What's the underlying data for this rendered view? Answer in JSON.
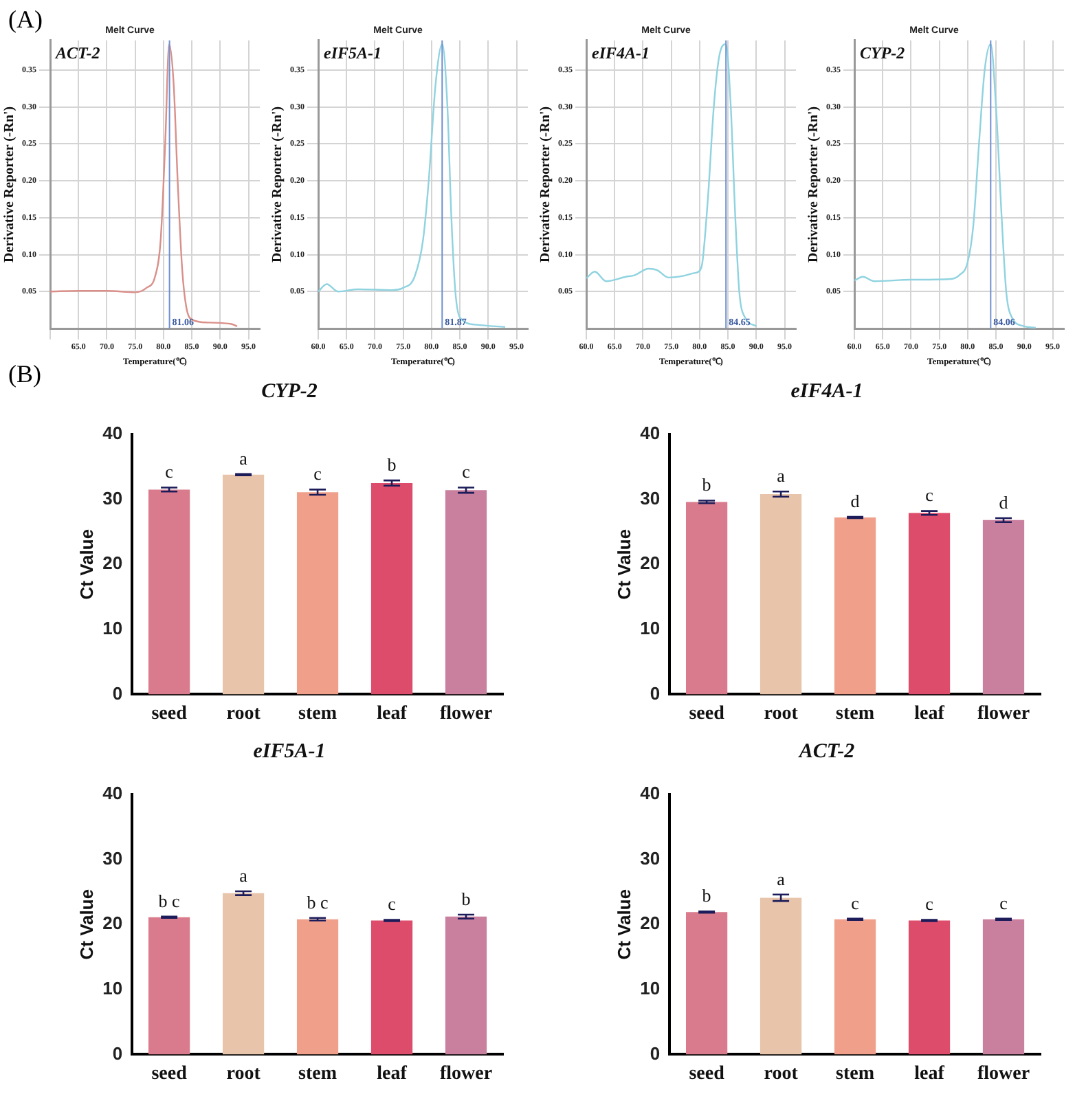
{
  "chart_data": [
    {
      "type": "other",
      "title": "(A)"
    },
    {
      "type": "line",
      "title": "Melt Curve",
      "xlabel": "Temperature(℃)",
      "ylabel": "Derivative Reporter (-Rn')",
      "annotations": [
        "ACT-2"
      ],
      "color": "#d9908a",
      "x": [
        60,
        65,
        70,
        75,
        77,
        78.5,
        79.5,
        80.3,
        81,
        81.8,
        82.5,
        83.3,
        84,
        85,
        88,
        92,
        93
      ],
      "values": [
        0.05,
        0.051,
        0.051,
        0.049,
        0.055,
        0.07,
        0.12,
        0.25,
        0.385,
        0.33,
        0.2,
        0.08,
        0.03,
        0.012,
        0.008,
        0.006,
        0.003
      ],
      "xlim": [
        60,
        97
      ],
      "xticks": [
        {
          "value": 60,
          "label": null
        },
        {
          "value": 65,
          "label": "65.0"
        },
        {
          "value": 70,
          "label": "70.0"
        },
        {
          "value": 75,
          "label": "75.0"
        },
        {
          "value": 80,
          "label": "80.0"
        },
        {
          "value": 85,
          "label": "85.0"
        },
        {
          "value": 90,
          "label": "90.0"
        },
        {
          "value": 95,
          "label": "95.0"
        }
      ],
      "ylim": [
        0,
        0.39
      ],
      "yticks": [
        0.05,
        {
          "value": 0.1,
          "label": "0.10"
        },
        0.15,
        {
          "value": 0.2,
          "label": "0.20"
        },
        0.25,
        {
          "value": 0.3,
          "label": "0.30"
        },
        0.35
      ],
      "grid": true,
      "ref_lines": [
        {
          "axis": "x",
          "value": 81.06,
          "label": "81.06",
          "color": "#6f8fd0"
        }
      ]
    },
    {
      "type": "line",
      "title": "Melt Curve",
      "xlabel": "Temperature(℃)",
      "ylabel": "Derivative Reporter (-Rn')",
      "annotations": [
        "eIF5A-1"
      ],
      "color": "#8fd3e0",
      "x": [
        60,
        61.5,
        63.5,
        67,
        73,
        75,
        77,
        78.5,
        79.5,
        80.7,
        81.9,
        82.8,
        83.5,
        84.2,
        85,
        88,
        93
      ],
      "values": [
        0.05,
        0.06,
        0.05,
        0.053,
        0.052,
        0.055,
        0.07,
        0.12,
        0.2,
        0.33,
        0.385,
        0.3,
        0.15,
        0.05,
        0.015,
        0.005,
        0.002
      ],
      "xlim": [
        60,
        97
      ],
      "xticks": [
        {
          "value": 60,
          "label": "60.0"
        },
        {
          "value": 65,
          "label": "65.0"
        },
        {
          "value": 70,
          "label": "70.0"
        },
        {
          "value": 75,
          "label": "75.0"
        },
        {
          "value": 80,
          "label": "80.0"
        },
        {
          "value": 85,
          "label": "85.0"
        },
        {
          "value": 90,
          "label": "90.0"
        },
        {
          "value": 95,
          "label": "95.0"
        }
      ],
      "ylim": [
        0,
        0.39
      ],
      "yticks": [
        0.05,
        {
          "value": 0.1,
          "label": "0.10"
        },
        0.15,
        {
          "value": 0.2,
          "label": "0.20"
        },
        0.25,
        {
          "value": 0.3,
          "label": "0.30"
        },
        0.35
      ],
      "grid": true,
      "ref_lines": [
        {
          "axis": "x",
          "value": 81.87,
          "label": "81.87",
          "color": "#6f8fd0"
        }
      ]
    },
    {
      "type": "line",
      "title": "Melt Curve",
      "xlabel": "Temperature(℃)",
      "ylabel": "Derivative Reporter (-Rn')",
      "annotations": [
        "eIF4A-1"
      ],
      "color": "#8fd3e0",
      "x": [
        60,
        61.5,
        63.5,
        67,
        68.5,
        71,
        72.5,
        74.5,
        77,
        79,
        80,
        80.5,
        81.5,
        82.5,
        83.5,
        84.65,
        85.5,
        86.3,
        87,
        88,
        90
      ],
      "values": [
        0.068,
        0.077,
        0.064,
        0.07,
        0.072,
        0.081,
        0.079,
        0.069,
        0.071,
        0.075,
        0.078,
        0.09,
        0.18,
        0.3,
        0.37,
        0.385,
        0.3,
        0.15,
        0.05,
        0.015,
        0.003
      ],
      "xlim": [
        60,
        97
      ],
      "xticks": [
        {
          "value": 60,
          "label": "60.0"
        },
        {
          "value": 65,
          "label": "65.0"
        },
        {
          "value": 70,
          "label": "70.0"
        },
        {
          "value": 75,
          "label": "75.0"
        },
        {
          "value": 80,
          "label": "80.0"
        },
        {
          "value": 85,
          "label": "85.0"
        },
        {
          "value": 90,
          "label": "90.0"
        },
        {
          "value": 95,
          "label": "95.0"
        }
      ],
      "ylim": [
        0,
        0.39
      ],
      "yticks": [
        0.05,
        {
          "value": 0.1,
          "label": "0.10"
        },
        0.15,
        {
          "value": 0.2,
          "label": "0.20"
        },
        0.25,
        {
          "value": 0.3,
          "label": "0.30"
        },
        0.35
      ],
      "grid": true,
      "ref_lines": [
        {
          "axis": "x",
          "value": 84.65,
          "label": "84.65",
          "color": "#6f8fd0"
        }
      ]
    },
    {
      "type": "line",
      "title": "Melt Curve",
      "xlabel": "Temperature(℃)",
      "ylabel": "Derivative Reporter (-Rn')",
      "annotations": [
        "CYP-2"
      ],
      "color": "#8fd3e0",
      "x": [
        60,
        61.5,
        63.5,
        70,
        77,
        78.5,
        80,
        81,
        82,
        83,
        84.06,
        85,
        86,
        86.8,
        87.8,
        90,
        92
      ],
      "values": [
        0.065,
        0.07,
        0.064,
        0.066,
        0.067,
        0.072,
        0.09,
        0.14,
        0.25,
        0.35,
        0.385,
        0.3,
        0.15,
        0.05,
        0.015,
        0.003,
        0.001
      ],
      "xlim": [
        60,
        97
      ],
      "xticks": [
        {
          "value": 60,
          "label": "60.0"
        },
        {
          "value": 65,
          "label": "65.0"
        },
        {
          "value": 70,
          "label": "70.0"
        },
        {
          "value": 75,
          "label": "75.0"
        },
        {
          "value": 80,
          "label": "80.0"
        },
        {
          "value": 85,
          "label": "85.0"
        },
        {
          "value": 90,
          "label": "90.0"
        },
        {
          "value": 95,
          "label": "95.0"
        }
      ],
      "ylim": [
        0,
        0.39
      ],
      "yticks": [
        0.05,
        {
          "value": 0.1,
          "label": "0.10"
        },
        0.15,
        {
          "value": 0.2,
          "label": "0.20"
        },
        0.25,
        {
          "value": 0.3,
          "label": "0.30"
        },
        0.35
      ],
      "grid": true,
      "ref_lines": [
        {
          "axis": "x",
          "value": 84.06,
          "label": "84.06",
          "color": "#6f8fd0"
        }
      ]
    },
    {
      "type": "other",
      "title": "(B)"
    },
    {
      "type": "bar",
      "title": "CYP-2",
      "ylabel": "Ct Value",
      "categories": [
        "seed",
        "root",
        "stem",
        "leaf",
        "flower"
      ],
      "values": [
        31.5,
        33.8,
        31.1,
        32.5,
        31.4
      ],
      "errors": [
        0.3,
        0.1,
        0.4,
        0.4,
        0.4
      ],
      "colors": [
        "#d97b8c",
        "#e8c4aa",
        "#f0a08a",
        "#de4c6c",
        "#c9809e"
      ],
      "ylim": [
        0,
        40
      ],
      "yticks": [
        0,
        10,
        20,
        30,
        40
      ],
      "annotations": [
        {
          "text": "c",
          "x": "seed",
          "y": 31.8
        },
        {
          "text": "a",
          "x": "root",
          "y": 33.9
        },
        {
          "text": "c",
          "x": "stem",
          "y": 31.5
        },
        {
          "text": "b",
          "x": "leaf",
          "y": 32.9
        },
        {
          "text": "c",
          "x": "flower",
          "y": 31.8
        }
      ]
    },
    {
      "type": "bar",
      "title": "eIF4A-1",
      "ylabel": "Ct Value",
      "categories": [
        "seed",
        "root",
        "stem",
        "leaf",
        "flower"
      ],
      "values": [
        29.6,
        30.8,
        27.2,
        27.9,
        26.8
      ],
      "errors": [
        0.2,
        0.4,
        0.1,
        0.3,
        0.3
      ],
      "colors": [
        "#d97b8c",
        "#e8c4aa",
        "#f0a08a",
        "#de4c6c",
        "#c9809e"
      ],
      "ylim": [
        0,
        40
      ],
      "yticks": [
        0,
        10,
        20,
        30,
        40
      ],
      "annotations": [
        {
          "text": "b",
          "x": "seed",
          "y": 29.8
        },
        {
          "text": "a",
          "x": "root",
          "y": 31.2
        },
        {
          "text": "d",
          "x": "stem",
          "y": 27.3
        },
        {
          "text": "c",
          "x": "leaf",
          "y": 28.2
        },
        {
          "text": "d",
          "x": "flower",
          "y": 27.1
        }
      ]
    },
    {
      "type": "bar",
      "title": "eIF5A-1",
      "ylabel": "Ct Value",
      "categories": [
        "seed",
        "root",
        "stem",
        "leaf",
        "flower"
      ],
      "values": [
        21.1,
        24.8,
        20.8,
        20.6,
        21.2
      ],
      "errors": [
        0.1,
        0.3,
        0.2,
        0.1,
        0.3
      ],
      "colors": [
        "#d97b8c",
        "#e8c4aa",
        "#f0a08a",
        "#de4c6c",
        "#c9809e"
      ],
      "ylim": [
        0,
        40
      ],
      "yticks": [
        0,
        10,
        20,
        30,
        40
      ],
      "annotations": [
        {
          "text": "b c",
          "x": "seed",
          "y": 21.2
        },
        {
          "text": "a",
          "x": "root",
          "y": 25.1
        },
        {
          "text": "b c",
          "x": "stem",
          "y": 21
        },
        {
          "text": "c",
          "x": "leaf",
          "y": 20.7
        },
        {
          "text": "b",
          "x": "flower",
          "y": 21.5
        }
      ]
    },
    {
      "type": "bar",
      "title": "ACT-2",
      "ylabel": "Ct Value",
      "categories": [
        "seed",
        "root",
        "stem",
        "leaf",
        "flower"
      ],
      "values": [
        21.9,
        24.1,
        20.8,
        20.6,
        20.8
      ],
      "errors": [
        0.1,
        0.5,
        0.1,
        0.1,
        0.1
      ],
      "colors": [
        "#d97b8c",
        "#e8c4aa",
        "#f0a08a",
        "#de4c6c",
        "#c9809e"
      ],
      "ylim": [
        0,
        40
      ],
      "yticks": [
        0,
        10,
        20,
        30,
        40
      ],
      "annotations": [
        {
          "text": "b",
          "x": "seed",
          "y": 22
        },
        {
          "text": "a",
          "x": "root",
          "y": 24.6
        },
        {
          "text": "c",
          "x": "stem",
          "y": 20.9
        },
        {
          "text": "c",
          "x": "leaf",
          "y": 20.7
        },
        {
          "text": "c",
          "x": "flower",
          "y": 20.9
        }
      ]
    }
  ]
}
